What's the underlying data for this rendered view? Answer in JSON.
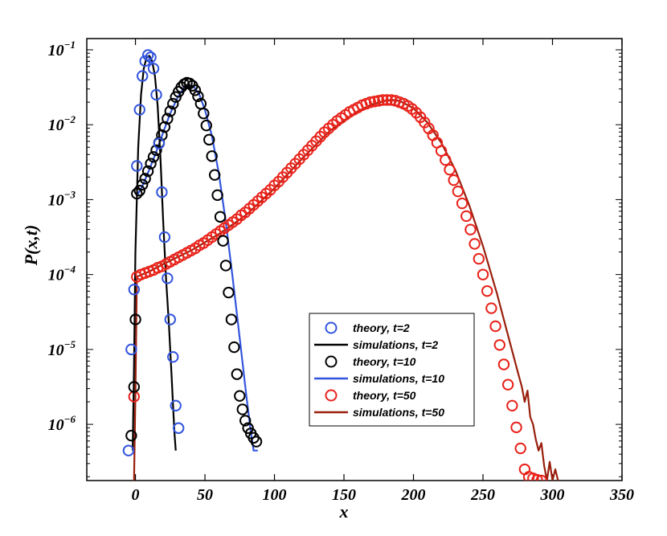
{
  "chart_data": {
    "type": "line",
    "title": "",
    "xlabel": "x",
    "ylabel": "P(x,t)",
    "xlim": [
      -35,
      350
    ],
    "ylim_log10": [
      -6.75,
      -0.85
    ],
    "y_scale": "log",
    "grid": false,
    "legend_position": "lower-right",
    "x_ticks": [
      {
        "value": 0,
        "label": "0"
      },
      {
        "value": 50,
        "label": "50"
      },
      {
        "value": 100,
        "label": "100"
      },
      {
        "value": 150,
        "label": "150"
      },
      {
        "value": 200,
        "label": "200"
      },
      {
        "value": 250,
        "label": "250"
      },
      {
        "value": 300,
        "label": "300"
      },
      {
        "value": 350,
        "label": "350"
      }
    ],
    "y_ticks": [
      {
        "exp": -1,
        "base": "10",
        "sup": "−1"
      },
      {
        "exp": -2,
        "base": "10",
        "sup": "−2"
      },
      {
        "exp": -3,
        "base": "10",
        "sup": "−3"
      },
      {
        "exp": -4,
        "base": "10",
        "sup": "−4"
      },
      {
        "exp": -5,
        "base": "10",
        "sup": "−5"
      },
      {
        "exp": -6,
        "base": "10",
        "sup": "−6"
      }
    ],
    "series": [
      {
        "name": "theory, t=2",
        "style": "markers",
        "color": "#3355dd",
        "x": [
          -5,
          -3,
          -1,
          1,
          3,
          5,
          7,
          9,
          11,
          13,
          15,
          17,
          19,
          21,
          23,
          25,
          27,
          29,
          31
        ],
        "y_log10": [
          -6.35,
          -5.0,
          -4.2,
          -2.55,
          -1.8,
          -1.35,
          -1.15,
          -1.07,
          -1.1,
          -1.25,
          -1.6,
          -2.25,
          -2.9,
          -3.5,
          -4.05,
          -4.6,
          -5.1,
          -5.75,
          -6.05
        ]
      },
      {
        "name": "simulations, t=2",
        "style": "line",
        "color": "#000000",
        "x": [
          -2,
          -1,
          0,
          2,
          4,
          6,
          8,
          10,
          12,
          14,
          16,
          18,
          20,
          22,
          24,
          26,
          28,
          29
        ],
        "y_log10": [
          -6.35,
          -5.2,
          -3.7,
          -2.3,
          -1.6,
          -1.25,
          -1.1,
          -1.08,
          -1.15,
          -1.35,
          -1.75,
          -2.45,
          -3.3,
          -4.05,
          -4.65,
          -5.35,
          -6.1,
          -6.35
        ]
      },
      {
        "name": "theory, t=10",
        "style": "markers",
        "color": "#000000",
        "x": [
          -3,
          -1,
          0,
          1,
          3,
          5,
          7,
          9,
          11,
          13,
          15,
          17,
          19,
          21,
          23,
          25,
          27,
          29,
          31,
          33,
          35,
          37,
          39,
          41,
          43,
          45,
          47,
          49,
          51,
          53,
          55,
          57,
          59,
          61,
          63,
          65,
          67,
          69,
          71,
          73,
          75,
          77,
          79,
          81,
          83,
          85,
          87
        ],
        "y_log10": [
          -6.15,
          -5.5,
          -4.6,
          -2.92,
          -2.88,
          -2.8,
          -2.72,
          -2.62,
          -2.52,
          -2.43,
          -2.34,
          -2.24,
          -2.14,
          -2.03,
          -1.92,
          -1.82,
          -1.72,
          -1.63,
          -1.56,
          -1.5,
          -1.46,
          -1.44,
          -1.45,
          -1.48,
          -1.54,
          -1.62,
          -1.72,
          -1.85,
          -2.01,
          -2.2,
          -2.42,
          -2.67,
          -2.94,
          -3.23,
          -3.55,
          -3.88,
          -4.24,
          -4.6,
          -4.97,
          -5.33,
          -5.62,
          -5.8,
          -5.95,
          -6.05,
          -6.12,
          -6.18,
          -6.23
        ]
      },
      {
        "name": "simulations, t=10",
        "style": "line",
        "color": "#3355dd",
        "x": [
          1,
          5,
          10,
          15,
          20,
          25,
          30,
          35,
          38,
          42,
          46,
          50,
          55,
          60,
          65,
          70,
          75,
          80,
          83,
          85,
          88
        ],
        "y_log10": [
          -2.95,
          -2.82,
          -2.6,
          -2.36,
          -2.1,
          -1.85,
          -1.65,
          -1.5,
          -1.47,
          -1.49,
          -1.6,
          -1.8,
          -2.15,
          -2.65,
          -3.3,
          -4.05,
          -4.85,
          -5.65,
          -6.1,
          -6.35,
          -6.35
        ]
      },
      {
        "name": "theory, t=50",
        "style": "markers",
        "color": "#e8221a",
        "x": [
          -1,
          1,
          4,
          7,
          10,
          13,
          16,
          19,
          22,
          25,
          28,
          31,
          34,
          37,
          40,
          43,
          46,
          49,
          52,
          55,
          58,
          61,
          64,
          67,
          70,
          73,
          76,
          79,
          82,
          85,
          88,
          91,
          94,
          97,
          100,
          103,
          106,
          109,
          112,
          115,
          118,
          121,
          124,
          127,
          130,
          133,
          136,
          139,
          142,
          145,
          148,
          151,
          154,
          157,
          160,
          163,
          166,
          169,
          172,
          175,
          178,
          181,
          184,
          187,
          190,
          193,
          196,
          199,
          202,
          205,
          208,
          211,
          214,
          217,
          220,
          223,
          226,
          229,
          232,
          235,
          238,
          241,
          244,
          247,
          250,
          253,
          256,
          259,
          262,
          265,
          268,
          271,
          274,
          277,
          280,
          283,
          286,
          289,
          292
        ],
        "y_log10": [
          -5.63,
          -4.03,
          -4.0,
          -3.98,
          -3.96,
          -3.94,
          -3.91,
          -3.89,
          -3.86,
          -3.83,
          -3.8,
          -3.77,
          -3.74,
          -3.71,
          -3.68,
          -3.65,
          -3.61,
          -3.58,
          -3.54,
          -3.5,
          -3.46,
          -3.42,
          -3.38,
          -3.34,
          -3.3,
          -3.26,
          -3.21,
          -3.17,
          -3.12,
          -3.07,
          -3.02,
          -2.97,
          -2.92,
          -2.87,
          -2.81,
          -2.76,
          -2.7,
          -2.64,
          -2.58,
          -2.52,
          -2.46,
          -2.4,
          -2.34,
          -2.28,
          -2.22,
          -2.16,
          -2.1,
          -2.05,
          -2.0,
          -1.95,
          -1.91,
          -1.87,
          -1.83,
          -1.8,
          -1.77,
          -1.74,
          -1.72,
          -1.7,
          -1.69,
          -1.68,
          -1.67,
          -1.67,
          -1.67,
          -1.68,
          -1.7,
          -1.72,
          -1.75,
          -1.79,
          -1.84,
          -1.9,
          -1.97,
          -2.05,
          -2.14,
          -2.24,
          -2.35,
          -2.47,
          -2.6,
          -2.74,
          -2.89,
          -3.05,
          -3.22,
          -3.4,
          -3.59,
          -3.79,
          -4.0,
          -4.22,
          -4.45,
          -4.69,
          -4.94,
          -5.2,
          -5.47,
          -5.75,
          -6.04,
          -6.32,
          -6.6,
          -6.7,
          -6.72,
          -6.74,
          -6.75
        ]
      },
      {
        "name": "simulations, t=50",
        "style": "line",
        "color": "#991f0c",
        "x": [
          -1,
          0,
          1,
          10,
          20,
          40,
          60,
          80,
          100,
          120,
          140,
          160,
          170,
          180,
          185,
          190,
          200,
          210,
          220,
          230,
          240,
          250,
          260,
          270,
          275,
          278,
          280,
          282,
          284,
          286,
          288,
          290,
          292,
          294,
          296,
          298,
          300,
          302,
          304
        ],
        "y_log10": [
          -6.75,
          -5.6,
          -4.03,
          -3.96,
          -3.86,
          -3.68,
          -3.46,
          -3.2,
          -2.85,
          -2.45,
          -2.08,
          -1.82,
          -1.73,
          -1.68,
          -1.67,
          -1.68,
          -1.78,
          -1.97,
          -2.24,
          -2.6,
          -3.07,
          -3.62,
          -4.25,
          -4.95,
          -5.3,
          -5.5,
          -5.7,
          -5.55,
          -5.9,
          -6.0,
          -6.2,
          -6.35,
          -6.25,
          -6.55,
          -6.75,
          -6.5,
          -6.75,
          -6.6,
          -6.75
        ]
      }
    ]
  }
}
